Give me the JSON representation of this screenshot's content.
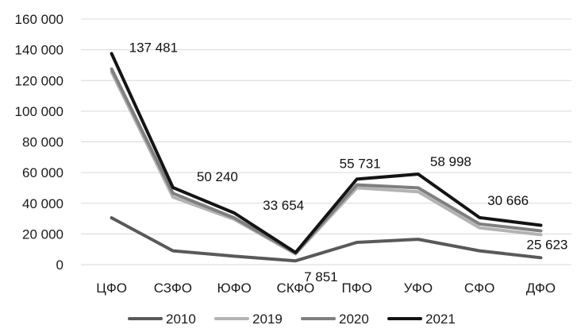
{
  "chart_data": {
    "type": "line",
    "title": "",
    "xlabel": "",
    "ylabel": "",
    "ylim": [
      0,
      160000
    ],
    "yticks": [
      0,
      20000,
      40000,
      60000,
      80000,
      100000,
      120000,
      140000,
      160000
    ],
    "ytick_labels": [
      "0",
      "20 000",
      "40 000",
      "60 000",
      "80 000",
      "100 000",
      "120 000",
      "140 000",
      "160 000"
    ],
    "grid": true,
    "legend_position": "bottom",
    "categories": [
      "ЦФО",
      "СЗФО",
      "ЮФО",
      "СКФО",
      "ПФО",
      "УФО",
      "СФО",
      "ДФО"
    ],
    "series": [
      {
        "name": "2010",
        "color": "#595959",
        "values": [
          30500,
          9000,
          5500,
          2500,
          14500,
          16500,
          9000,
          4500
        ]
      },
      {
        "name": "2019",
        "color": "#b3b3b3",
        "values": [
          125500,
          44000,
          29500,
          7000,
          50000,
          47500,
          24000,
          19500
        ]
      },
      {
        "name": "2020",
        "color": "#7f7f7f",
        "values": [
          127500,
          46500,
          30500,
          7500,
          52000,
          50000,
          26500,
          22000
        ]
      },
      {
        "name": "2021",
        "color": "#141414",
        "values": [
          137481,
          50240,
          33654,
          7851,
          55731,
          58998,
          30666,
          25623
        ]
      }
    ],
    "data_labels": [
      {
        "series": "2021",
        "index": 0,
        "text": "137 481"
      },
      {
        "series": "2021",
        "index": 1,
        "text": "50 240"
      },
      {
        "series": "2021",
        "index": 2,
        "text": "33 654"
      },
      {
        "series": "2021",
        "index": 3,
        "text": "7 851"
      },
      {
        "series": "2021",
        "index": 4,
        "text": "55 731"
      },
      {
        "series": "2021",
        "index": 5,
        "text": "58 998"
      },
      {
        "series": "2021",
        "index": 6,
        "text": "30 666"
      },
      {
        "series": "2021",
        "index": 7,
        "text": "25 623"
      }
    ]
  }
}
